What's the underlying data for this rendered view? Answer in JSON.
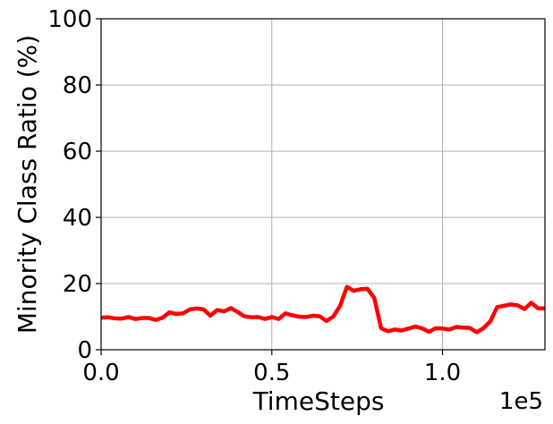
{
  "chart_data": {
    "type": "line",
    "title": "",
    "xlabel": "TimeSteps",
    "ylabel": "Minority Class Ratio (%)",
    "x_offset_text": "1e5",
    "xlim": [
      0,
      1.3
    ],
    "ylim": [
      0,
      100
    ],
    "x_ticks": [
      {
        "value": 0.0,
        "label": "0.0"
      },
      {
        "value": 0.5,
        "label": "0.5"
      },
      {
        "value": 1.0,
        "label": "1.0"
      }
    ],
    "y_ticks": [
      {
        "value": 0,
        "label": "0"
      },
      {
        "value": 20,
        "label": "20"
      },
      {
        "value": 40,
        "label": "40"
      },
      {
        "value": 60,
        "label": "60"
      },
      {
        "value": 80,
        "label": "80"
      },
      {
        "value": 100,
        "label": "100"
      }
    ],
    "grid": true,
    "series": [
      {
        "color": "#ff0000",
        "x": [
          0.0,
          0.02,
          0.04,
          0.06,
          0.08,
          0.1,
          0.12,
          0.14,
          0.16,
          0.18,
          0.2,
          0.22,
          0.24,
          0.26,
          0.28,
          0.3,
          0.32,
          0.34,
          0.36,
          0.38,
          0.4,
          0.42,
          0.44,
          0.46,
          0.48,
          0.5,
          0.52,
          0.54,
          0.56,
          0.58,
          0.6,
          0.62,
          0.64,
          0.66,
          0.68,
          0.7,
          0.72,
          0.74,
          0.76,
          0.78,
          0.8,
          0.82,
          0.84,
          0.86,
          0.88,
          0.9,
          0.92,
          0.94,
          0.96,
          0.98,
          1.0,
          1.02,
          1.04,
          1.06,
          1.08,
          1.1,
          1.12,
          1.14,
          1.16,
          1.18,
          1.2,
          1.22,
          1.24,
          1.26,
          1.28,
          1.3
        ],
        "y": [
          9.7,
          9.8,
          9.5,
          9.4,
          9.9,
          9.3,
          9.6,
          9.6,
          9.0,
          9.7,
          11.3,
          10.8,
          11.0,
          12.2,
          12.5,
          12.2,
          10.3,
          12.0,
          11.6,
          12.6,
          11.4,
          10.1,
          9.8,
          9.9,
          9.3,
          9.9,
          9.3,
          11.0,
          10.4,
          10.0,
          9.9,
          10.3,
          10.1,
          8.7,
          10.0,
          13.3,
          19.0,
          17.8,
          18.3,
          18.4,
          15.7,
          6.5,
          5.6,
          6.1,
          5.8,
          6.4,
          7.0,
          6.5,
          5.4,
          6.5,
          6.4,
          6.1,
          6.9,
          6.7,
          6.6,
          5.3,
          6.5,
          8.6,
          12.9,
          13.3,
          13.7,
          13.4,
          12.3,
          14.2,
          12.5,
          12.5
        ]
      }
    ]
  }
}
